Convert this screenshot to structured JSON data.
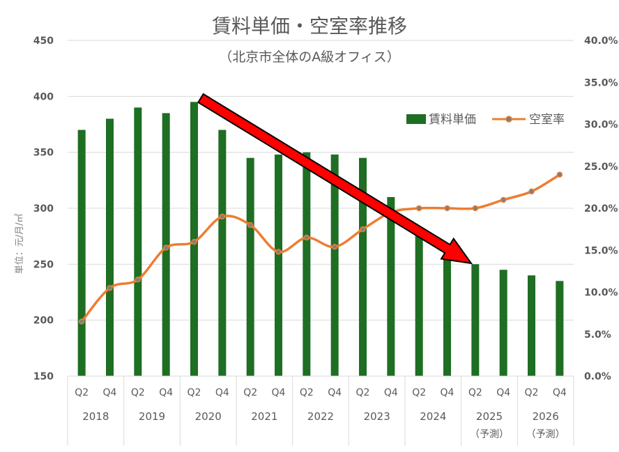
{
  "chart_data": {
    "type": "bar",
    "title": "賃料単価・空室率推移",
    "subtitle": "（北京市全体のA級オフィス）",
    "ylabel": "単位：元/月/㎡",
    "ylim": [
      150,
      450
    ],
    "ytick_values": [
      150,
      200,
      250,
      300,
      350,
      400,
      450
    ],
    "y2lim": [
      0,
      40
    ],
    "y2tick_labels": [
      "0.0%",
      "5.0%",
      "10.0%",
      "15.0%",
      "20.0%",
      "25.0%",
      "30.0%",
      "35.0%",
      "40.0%"
    ],
    "grid": true,
    "legend_position": "top-right",
    "categories": [
      "Q2",
      "Q4",
      "Q2",
      "Q4",
      "Q2",
      "Q4",
      "Q2",
      "Q4",
      "Q2",
      "Q4",
      "Q2",
      "Q4",
      "Q2",
      "Q4",
      "Q2",
      "Q4",
      "Q2",
      "Q4"
    ],
    "years": [
      {
        "label": "2018",
        "note": ""
      },
      {
        "label": "2019",
        "note": ""
      },
      {
        "label": "2020",
        "note": ""
      },
      {
        "label": "2021",
        "note": ""
      },
      {
        "label": "2022",
        "note": ""
      },
      {
        "label": "2023",
        "note": ""
      },
      {
        "label": "2024",
        "note": ""
      },
      {
        "label": "2025",
        "note": "（予測）"
      },
      {
        "label": "2026",
        "note": "（予測）"
      }
    ],
    "series": [
      {
        "name": "賃料単価",
        "type": "bar",
        "axis": "left",
        "color": "#1e6e23",
        "values": [
          370,
          380,
          390,
          385,
          395,
          370,
          345,
          348,
          350,
          348,
          345,
          310,
          280,
          255,
          250,
          245,
          240,
          235
        ]
      },
      {
        "name": "空室率",
        "type": "line",
        "axis": "right",
        "color": "#ed7d31",
        "marker_color": "#7f7f7f",
        "values": [
          6.5,
          10.5,
          11.5,
          15.3,
          16.0,
          19.0,
          18.0,
          14.8,
          16.5,
          15.4,
          17.5,
          19.5,
          20.0,
          20.0,
          20.0,
          21.0,
          22.0,
          24.0
        ]
      }
    ],
    "annotations": [
      {
        "type": "arrow",
        "color": "#ff0000",
        "direction": "down-right"
      }
    ]
  }
}
